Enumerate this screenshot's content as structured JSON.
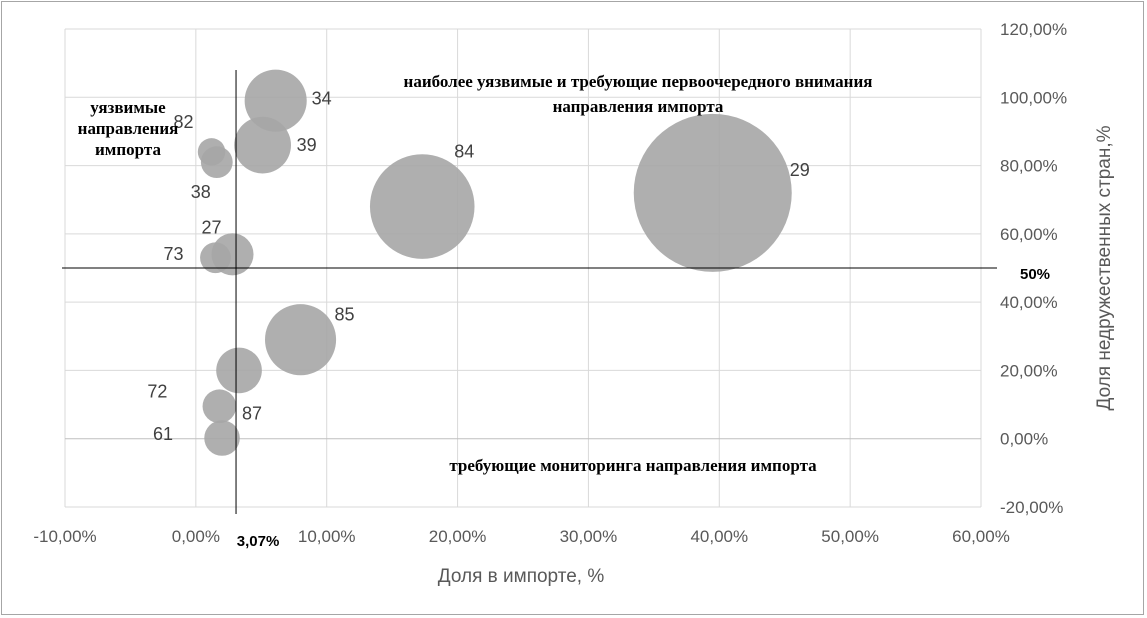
{
  "chart_data": {
    "type": "bubble",
    "xlabel": "Доля в импорте, %",
    "ylabel": "Доля недружественных стран,%",
    "xlim": [
      -0.1,
      0.6
    ],
    "ylim": [
      -0.2,
      1.2
    ],
    "x_ticks": [
      "-10,00%",
      "0,00%",
      "10,00%",
      "20,00%",
      "30,00%",
      "40,00%",
      "50,00%",
      "60,00%"
    ],
    "y_ticks": [
      "-20,00%",
      "0,00%",
      "20,00%",
      "40,00%",
      "60,00%",
      "80,00%",
      "100,00%",
      "120,00%"
    ],
    "grid": true,
    "bubble_color": "#a6a6a6",
    "points": [
      {
        "label": "34",
        "x": 0.061,
        "y": 0.99,
        "size": 0.061
      },
      {
        "label": "39",
        "x": 0.051,
        "y": 0.86,
        "size": 0.051
      },
      {
        "label": "82",
        "x": 0.012,
        "y": 0.84,
        "size": 0.012
      },
      {
        "label": "38",
        "x": 0.016,
        "y": 0.81,
        "size": 0.016
      },
      {
        "label": "84",
        "x": 0.173,
        "y": 0.68,
        "size": 0.173
      },
      {
        "label": "29",
        "x": 0.395,
        "y": 0.72,
        "size": 0.395
      },
      {
        "label": "27",
        "x": 0.028,
        "y": 0.54,
        "size": 0.028
      },
      {
        "label": "73",
        "x": 0.015,
        "y": 0.53,
        "size": 0.015
      },
      {
        "label": "85",
        "x": 0.08,
        "y": 0.29,
        "size": 0.08
      },
      {
        "label": "87",
        "x": 0.033,
        "y": 0.2,
        "size": 0.033
      },
      {
        "label": "72",
        "x": 0.018,
        "y": 0.095,
        "size": 0.018
      },
      {
        "label": "61",
        "x": 0.02,
        "y": 0.002,
        "size": 0.02
      }
    ],
    "thresholds": {
      "x": 0.0307,
      "x_label": "3,07%",
      "y": 0.5,
      "y_label": "50%"
    },
    "annotations": {
      "top_right": [
        "наиболее уязвимые и требующие первоочередного внимания",
        "направления импорта"
      ],
      "top_left": [
        "уязвимые",
        "направления",
        "импорта"
      ],
      "bottom": "требующие мониторинга направления импорта"
    }
  }
}
